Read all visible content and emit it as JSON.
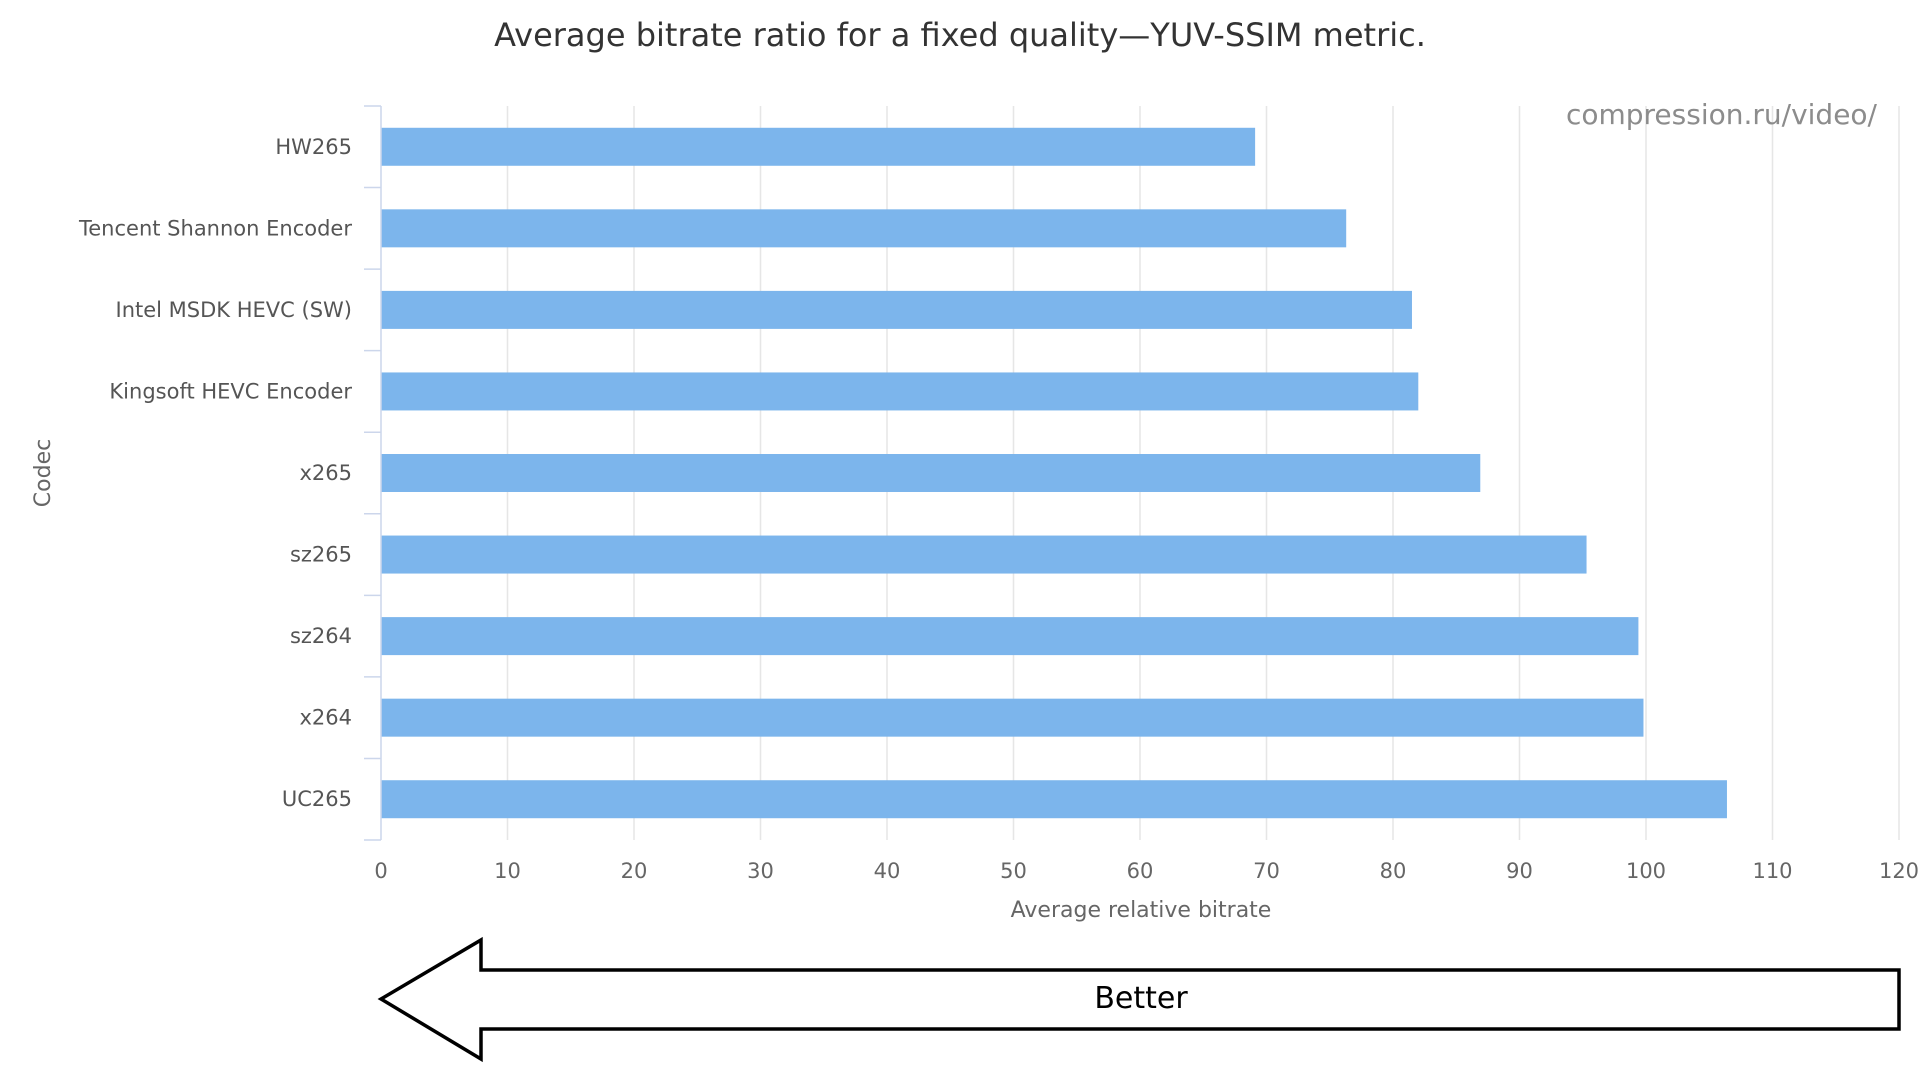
{
  "chart_data": {
    "type": "bar",
    "orientation": "horizontal",
    "title": "Average bitrate ratio for a fixed quality—YUV-SSIM metric.",
    "xlabel": "Average relative bitrate",
    "ylabel": "Codec",
    "watermark": "compression.ru/video/",
    "categories": [
      "HW265",
      "Tencent Shannon Encoder",
      "Intel MSDK HEVC (SW)",
      "Kingsoft HEVC Encoder",
      "x265",
      "sz265",
      "sz264",
      "x264",
      "UC265"
    ],
    "values": [
      69.1,
      76.3,
      81.5,
      82.0,
      86.9,
      95.3,
      99.4,
      99.8,
      106.4
    ],
    "xlim": [
      0,
      120
    ],
    "xticks": [
      "0",
      "10",
      "20",
      "30",
      "40",
      "50",
      "60",
      "70",
      "80",
      "90",
      "100",
      "110",
      "120"
    ],
    "grid": true,
    "bar_color": "#7cb5ec",
    "annotation": {
      "text": "Better",
      "direction": "left"
    }
  }
}
